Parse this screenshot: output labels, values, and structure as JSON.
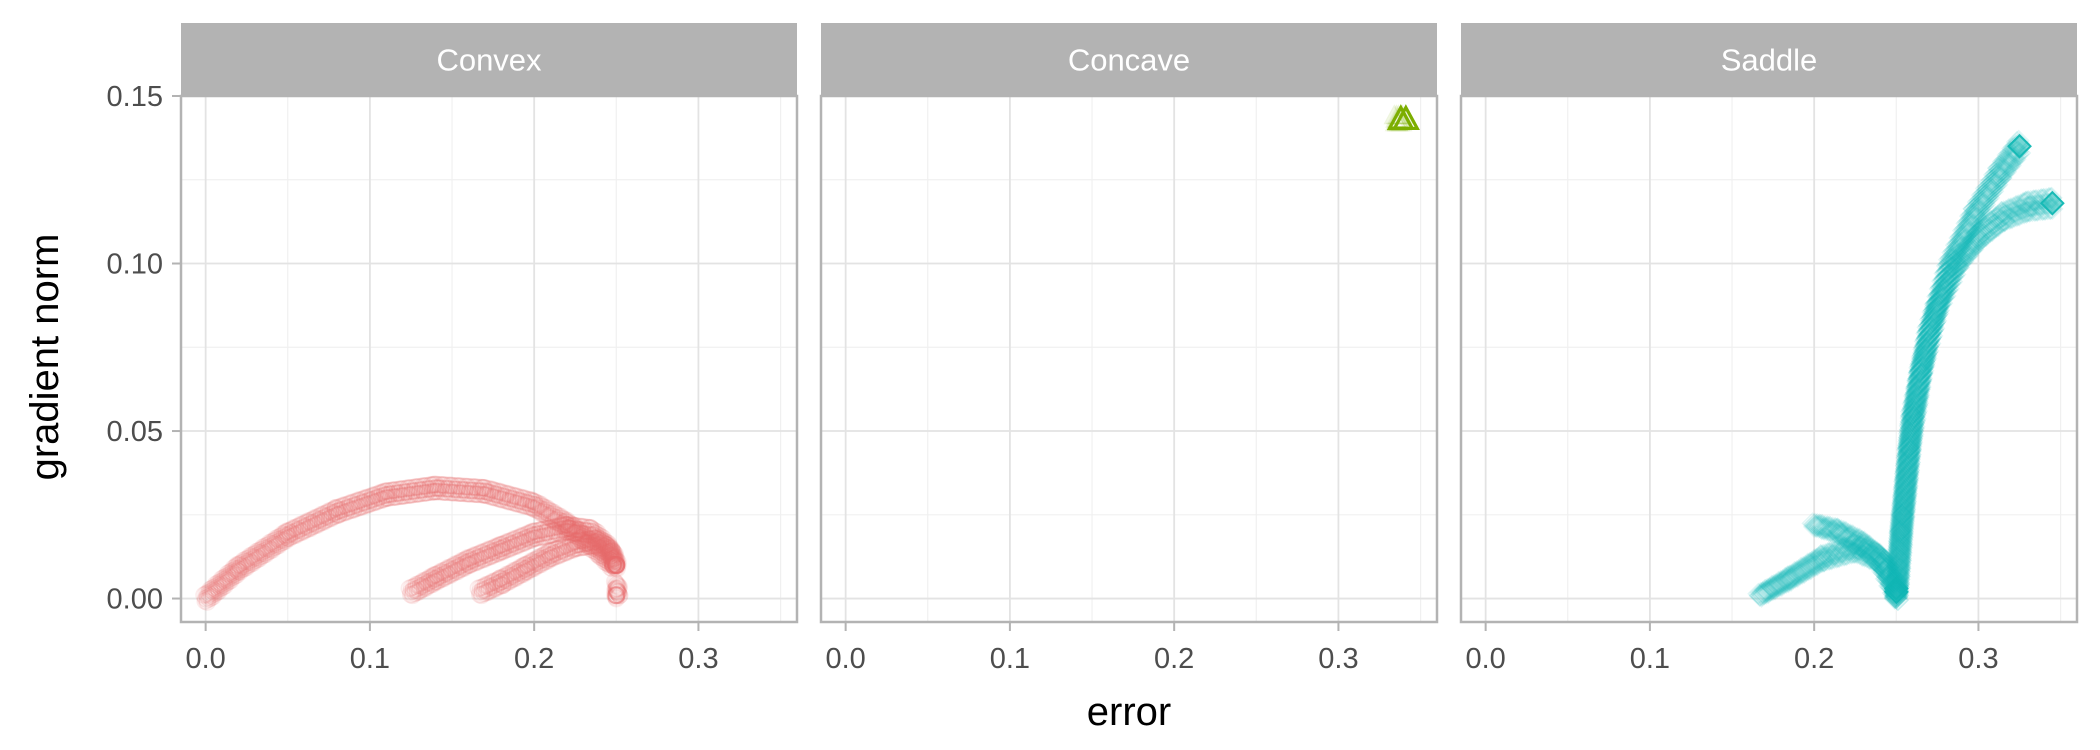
{
  "chart_data": {
    "type": "scatter",
    "xlabel": "error",
    "ylabel": "gradient norm",
    "xlim": [
      -0.015,
      0.36
    ],
    "ylim": [
      -0.007,
      0.15
    ],
    "x_ticks": [
      0.0,
      0.1,
      0.2,
      0.3
    ],
    "x_tick_labels": [
      "0.0",
      "0.1",
      "0.2",
      "0.3"
    ],
    "y_ticks": [
      0.0,
      0.05,
      0.1,
      0.15
    ],
    "y_tick_labels": [
      "0.00",
      "0.05",
      "0.10",
      "0.15"
    ],
    "grid": true,
    "legend": "none",
    "panels": [
      {
        "name": "Convex",
        "color": "#E8696A",
        "marker": "circle",
        "curves": [
          {
            "x": [
              0.0,
              0.02,
              0.05,
              0.08,
              0.11,
              0.14,
              0.17,
              0.2,
              0.22,
              0.24,
              0.248
            ],
            "y": [
              0.0,
              0.009,
              0.019,
              0.026,
              0.031,
              0.033,
              0.032,
              0.028,
              0.022,
              0.014,
              0.01
            ]
          },
          {
            "x": [
              0.125,
              0.14,
              0.16,
              0.18,
              0.2,
              0.22,
              0.235,
              0.245,
              0.25
            ],
            "y": [
              0.002,
              0.006,
              0.011,
              0.015,
              0.019,
              0.021,
              0.02,
              0.015,
              0.01
            ]
          },
          {
            "x": [
              0.167,
              0.18,
              0.195,
              0.21,
              0.225,
              0.238,
              0.247,
              0.25
            ],
            "y": [
              0.002,
              0.005,
              0.009,
              0.013,
              0.016,
              0.017,
              0.014,
              0.01
            ]
          },
          {
            "x": [
              0.25,
              0.251,
              0.25
            ],
            "y": [
              0.004,
              0.002,
              0.001
            ]
          }
        ]
      },
      {
        "name": "Concave",
        "color": "#7CAE00",
        "marker": "triangle",
        "curves": [
          {
            "x": [
              0.335,
              0.338
            ],
            "y": [
              0.143,
              0.143
            ]
          }
        ]
      },
      {
        "name": "Saddle",
        "color": "#17BAB6",
        "marker": "diamond",
        "curves": [
          {
            "x": [
              0.167,
              0.185,
              0.205,
              0.225,
              0.24,
              0.25
            ],
            "y": [
              0.001,
              0.006,
              0.012,
              0.015,
              0.012,
              0.002
            ]
          },
          {
            "x": [
              0.2,
              0.215,
              0.23,
              0.243,
              0.25
            ],
            "y": [
              0.022,
              0.02,
              0.016,
              0.01,
              0.003
            ]
          },
          {
            "x": [
              0.25,
              0.253,
              0.258,
              0.265,
              0.275,
              0.287,
              0.3,
              0.315,
              0.33,
              0.345
            ],
            "y": [
              0.0,
              0.02,
              0.045,
              0.068,
              0.087,
              0.1,
              0.108,
              0.114,
              0.117,
              0.118
            ]
          },
          {
            "x": [
              0.25,
              0.254,
              0.26,
              0.27,
              0.283,
              0.298,
              0.313,
              0.325
            ],
            "y": [
              0.0,
              0.025,
              0.055,
              0.08,
              0.1,
              0.115,
              0.127,
              0.135
            ]
          }
        ]
      }
    ]
  }
}
